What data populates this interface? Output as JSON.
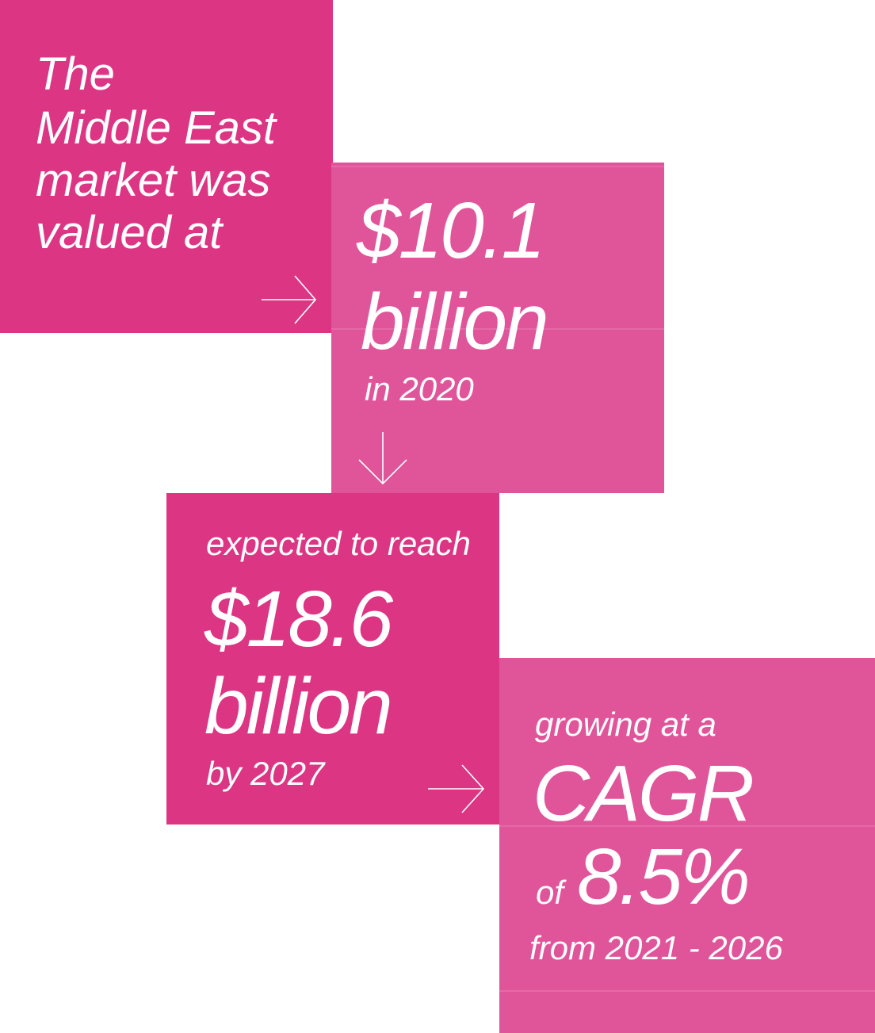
{
  "boxes": [
    {
      "lines": [
        "The",
        "Middle East",
        "market was",
        "valued at"
      ]
    },
    {
      "lines": [
        "$10.1",
        "billion",
        "in 2020"
      ]
    },
    {
      "lines": [
        "expected to reach",
        "$18.6",
        "billion",
        "by 2027"
      ]
    },
    {
      "lines": [
        "growing at a",
        "CAGR",
        "of",
        "8.5%",
        "from 2021 - 2026"
      ]
    }
  ]
}
